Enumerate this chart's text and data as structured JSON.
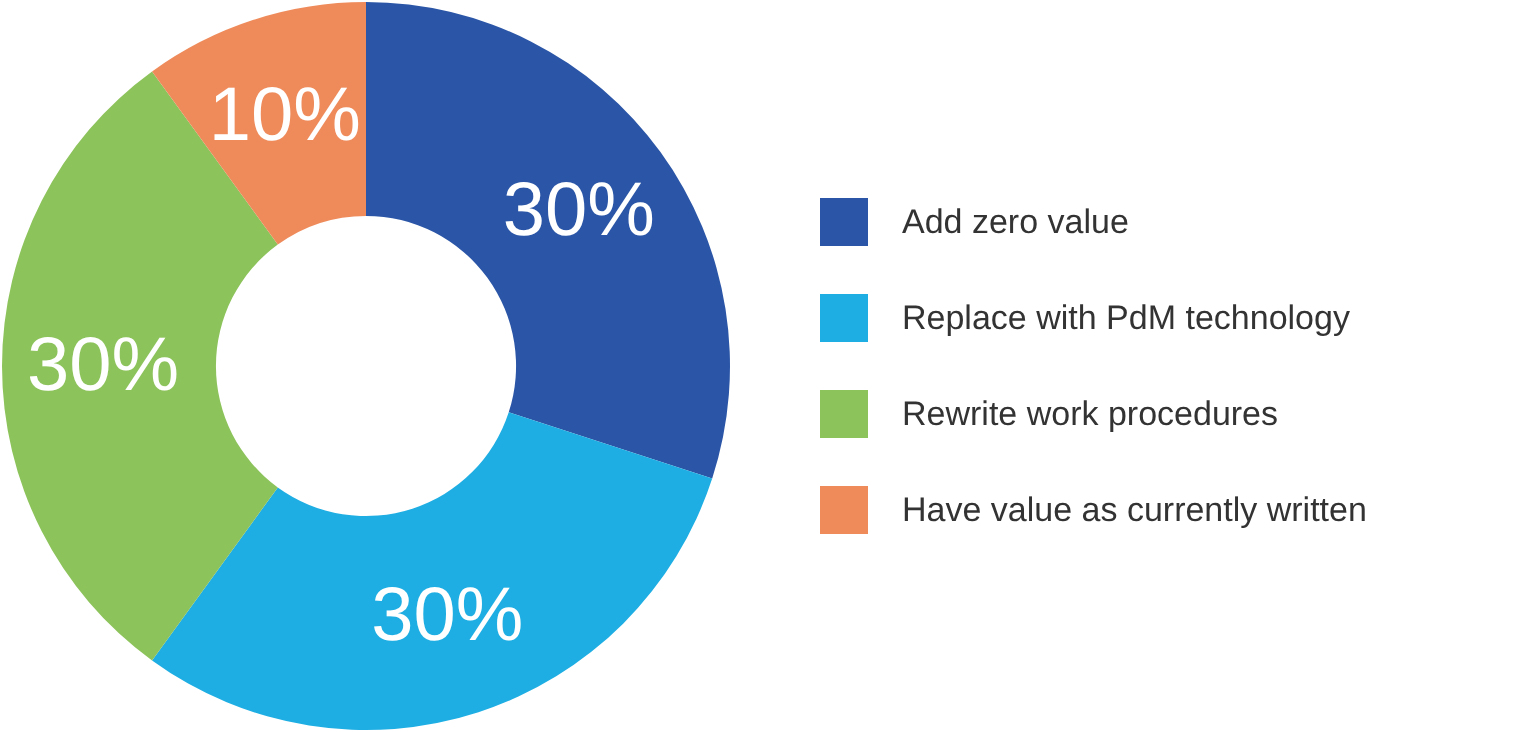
{
  "chart_data": {
    "type": "donut",
    "categories": [
      "Add zero value",
      "Replace with PdM technology",
      "Rewrite work procedures",
      "Have value as currently written"
    ],
    "values": [
      30,
      30,
      30,
      10
    ],
    "colors": [
      "#2b56a7",
      "#1eaee3",
      "#8dc35b",
      "#ef8b5b"
    ],
    "value_labels": [
      "30%",
      "30%",
      "30%",
      "10%"
    ],
    "legend": "right"
  }
}
